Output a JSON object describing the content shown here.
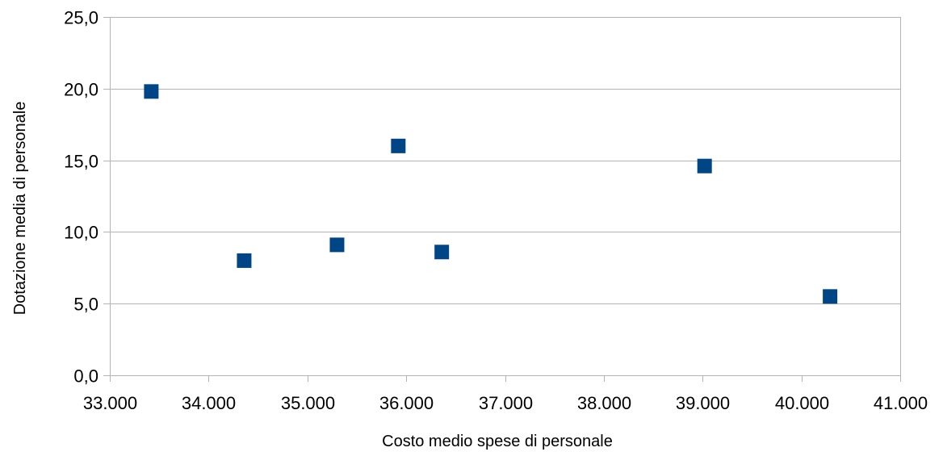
{
  "chart_data": {
    "type": "scatter",
    "xlabel": "Costo medio spese di personale",
    "ylabel": "Dotazione media di personale",
    "xlim": [
      33000,
      41000
    ],
    "ylim": [
      0,
      25
    ],
    "x_ticks": [
      33000,
      34000,
      35000,
      36000,
      37000,
      38000,
      39000,
      40000,
      41000
    ],
    "x_tick_labels": [
      "33.000",
      "34.000",
      "35.000",
      "36.000",
      "37.000",
      "38.000",
      "39.000",
      "40.000",
      "41.000"
    ],
    "y_ticks": [
      0,
      5,
      10,
      15,
      20,
      25
    ],
    "y_tick_labels": [
      "0,0",
      "5,0",
      "10,0",
      "15,0",
      "20,0",
      "25,0"
    ],
    "grid": "horizontal",
    "legend": "none",
    "marker": "square",
    "colors": {
      "marker": "#004586",
      "grid": "#b3b3b3",
      "axis": "#b3b3b3"
    },
    "series": [
      {
        "points": [
          {
            "x": 33420,
            "y": 19.8
          },
          {
            "x": 34360,
            "y": 8.0
          },
          {
            "x": 35300,
            "y": 9.1
          },
          {
            "x": 35920,
            "y": 16.0
          },
          {
            "x": 36360,
            "y": 8.6
          },
          {
            "x": 39020,
            "y": 14.6
          },
          {
            "x": 40290,
            "y": 5.5
          }
        ]
      }
    ]
  }
}
